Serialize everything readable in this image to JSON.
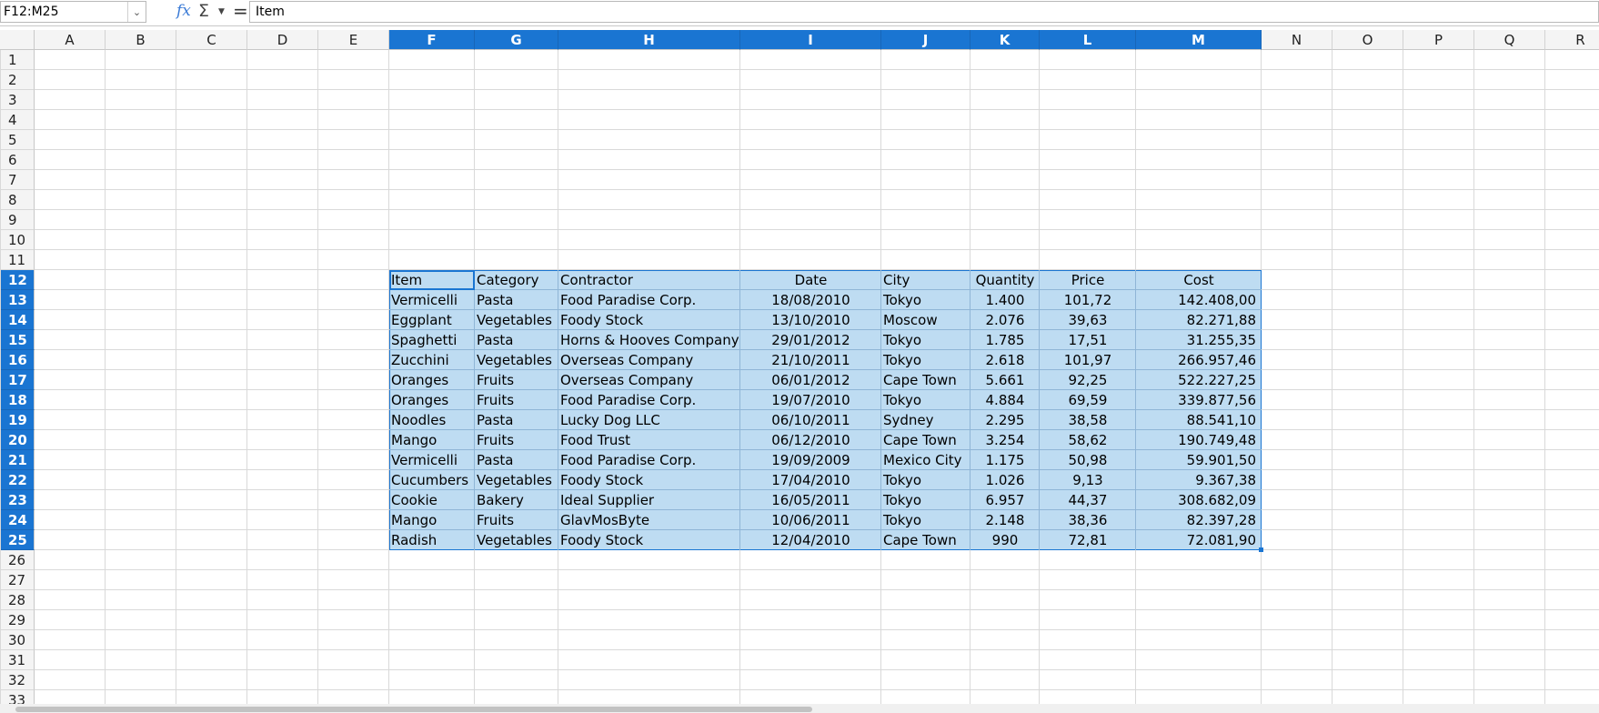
{
  "namebox": {
    "value": "F12:M25"
  },
  "formula": {
    "value": "Item"
  },
  "columns": [
    "A",
    "B",
    "C",
    "D",
    "E",
    "F",
    "G",
    "H",
    "I",
    "J",
    "K",
    "L",
    "M",
    "N",
    "O",
    "P",
    "Q",
    "R"
  ],
  "rows": [
    "1",
    "2",
    "3",
    "4",
    "5",
    "6",
    "7",
    "8",
    "9",
    "10",
    "11",
    "12",
    "13",
    "14",
    "15",
    "16",
    "17",
    "18",
    "19",
    "20",
    "21",
    "22",
    "23",
    "24",
    "25",
    "26",
    "27",
    "28",
    "29",
    "30",
    "31",
    "32",
    "33"
  ],
  "table": {
    "headers": [
      "Item",
      "Category",
      "Contractor",
      "Date",
      "City",
      "Quantity",
      "Price",
      "Cost"
    ],
    "rows": [
      [
        "Vermicelli",
        "Pasta",
        "Food Paradise Corp.",
        "18/08/2010",
        "Tokyo",
        "1.400",
        "101,72",
        "142.408,00"
      ],
      [
        "Eggplant",
        "Vegetables",
        "Foody Stock",
        "13/10/2010",
        "Moscow",
        "2.076",
        "39,63",
        "82.271,88"
      ],
      [
        "Spaghetti",
        "Pasta",
        "Horns & Hooves Company",
        "29/01/2012",
        "Tokyo",
        "1.785",
        "17,51",
        "31.255,35"
      ],
      [
        "Zucchini",
        "Vegetables",
        "Overseas Company",
        "21/10/2011",
        "Tokyo",
        "2.618",
        "101,97",
        "266.957,46"
      ],
      [
        "Oranges",
        "Fruits",
        "Overseas Company",
        "06/01/2012",
        "Cape Town",
        "5.661",
        "92,25",
        "522.227,25"
      ],
      [
        "Oranges",
        "Fruits",
        "Food Paradise Corp.",
        "19/07/2010",
        "Tokyo",
        "4.884",
        "69,59",
        "339.877,56"
      ],
      [
        "Noodles",
        "Pasta",
        "Lucky Dog LLC",
        "06/10/2011",
        "Sydney",
        "2.295",
        "38,58",
        "88.541,10"
      ],
      [
        "Mango",
        "Fruits",
        "Food Trust",
        "06/12/2010",
        "Cape Town",
        "3.254",
        "58,62",
        "190.749,48"
      ],
      [
        "Vermicelli",
        "Pasta",
        "Food Paradise Corp.",
        "19/09/2009",
        "Mexico City",
        "1.175",
        "50,98",
        "59.901,50"
      ],
      [
        "Cucumbers",
        "Vegetables",
        "Foody Stock",
        "17/04/2010",
        "Tokyo",
        "1.026",
        "9,13",
        "9.367,38"
      ],
      [
        "Cookie",
        "Bakery",
        "Ideal Supplier",
        "16/05/2011",
        "Tokyo",
        "6.957",
        "44,37",
        "308.682,09"
      ],
      [
        "Mango",
        "Fruits",
        "GlavMosByte",
        "10/06/2011",
        "Tokyo",
        "2.148",
        "38,36",
        "82.397,28"
      ],
      [
        "Radish",
        "Vegetables",
        "Foody Stock",
        "12/04/2010",
        "Cape Town",
        "990",
        "72,81",
        "72.081,90"
      ]
    ]
  },
  "colors": {
    "selection": "#bedcf2",
    "accent": "#1a75d2"
  }
}
